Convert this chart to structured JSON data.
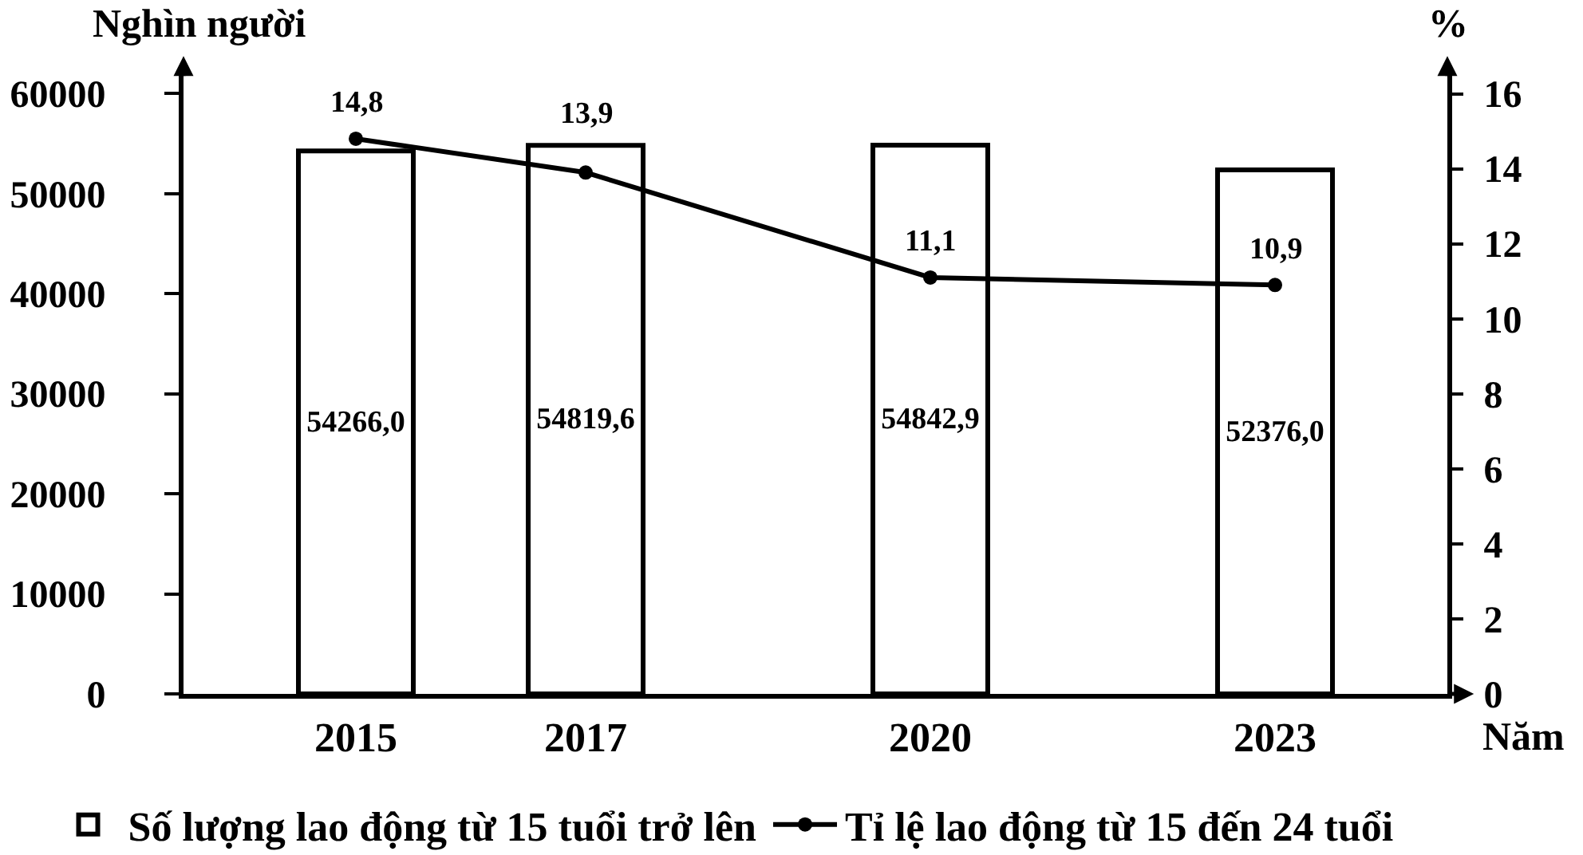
{
  "chart_data": {
    "type": "bar",
    "xlabel": "Năm",
    "ylabel": "Nghìn người",
    "y2label": "%",
    "x": [
      2015,
      2017,
      2020,
      2023
    ],
    "xlim": [
      2013.5,
      2024.5
    ],
    "xticks": [
      2015,
      2017,
      2020,
      2023
    ],
    "ylim": [
      0,
      62500
    ],
    "yticks": [
      0,
      10000,
      20000,
      30000,
      40000,
      50000,
      60000
    ],
    "y2lim": [
      0,
      16.67
    ],
    "y2ticks": [
      0,
      2,
      4,
      6,
      8,
      10,
      12,
      14,
      16
    ],
    "series": [
      {
        "name": "Số lượng lao động từ 15 tuổi trở lên",
        "color": "#ffffff",
        "values": [
          54266.0,
          54819.6,
          54842.9,
          52376.0
        ],
        "value_labels": [
          "54266,0",
          "54819,6",
          "54842,9",
          "52376,0"
        ]
      },
      {
        "name": "Tỉ lệ lao động từ 15 đến 24 tuổi",
        "type": "line",
        "axis": "y2",
        "color": "#000000",
        "values": [
          14.8,
          13.9,
          11.1,
          10.9
        ],
        "value_labels": [
          "14,8",
          "13,9",
          "11,1",
          "10,9"
        ]
      }
    ],
    "legend": "bottom",
    "marker": "circle",
    "line_style": "solid"
  }
}
